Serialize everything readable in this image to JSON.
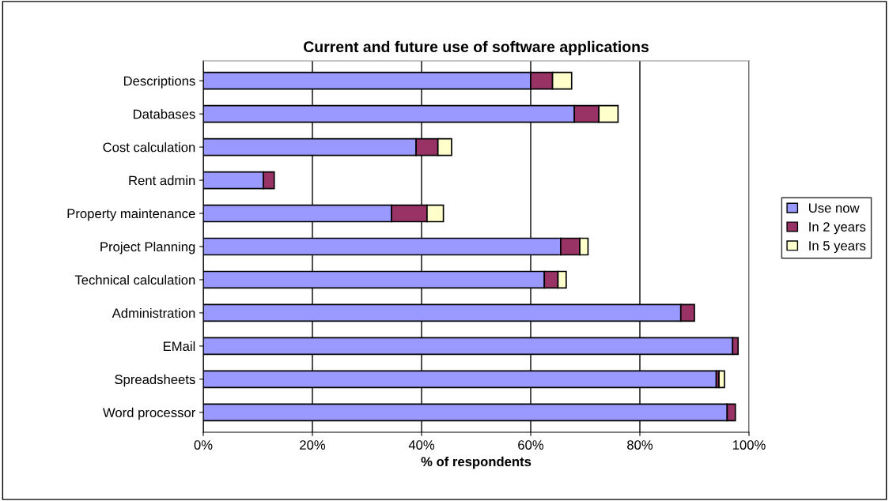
{
  "chart_data": {
    "type": "bar",
    "orientation": "horizontal",
    "stacked": true,
    "title": "Current and future use of software applications",
    "xlabel": "% of respondents",
    "categories": [
      "Descriptions",
      "Databases",
      "Cost calculation",
      "Rent admin",
      "Property maintenance",
      "Project Planning",
      "Technical calculation",
      "Administration",
      "EMail",
      "Spreadsheets",
      "Word processor"
    ],
    "series": [
      {
        "name": "Use now",
        "color": "#9999ff",
        "values": [
          60,
          68,
          39,
          11,
          34.5,
          65.5,
          62.5,
          87.5,
          97,
          94,
          96
        ]
      },
      {
        "name": "In 2 years",
        "color": "#993366",
        "values": [
          4,
          4.5,
          4,
          2,
          6.5,
          3.5,
          2.5,
          2.5,
          1,
          0.5,
          1.5
        ]
      },
      {
        "name": "In 5 years",
        "color": "#ffffcc",
        "values": [
          3.5,
          3.5,
          2.5,
          null,
          3,
          1.5,
          1.5,
          null,
          null,
          1,
          null
        ]
      }
    ],
    "xlim": [
      0,
      100
    ],
    "xticks": [
      {
        "value": 0,
        "label": "0%"
      },
      {
        "value": 20,
        "label": "20%"
      },
      {
        "value": 40,
        "label": "40%"
      },
      {
        "value": 60,
        "label": "60%"
      },
      {
        "value": 80,
        "label": "80%"
      },
      {
        "value": 100,
        "label": "100%"
      }
    ],
    "grid": "x",
    "legend": "right"
  }
}
